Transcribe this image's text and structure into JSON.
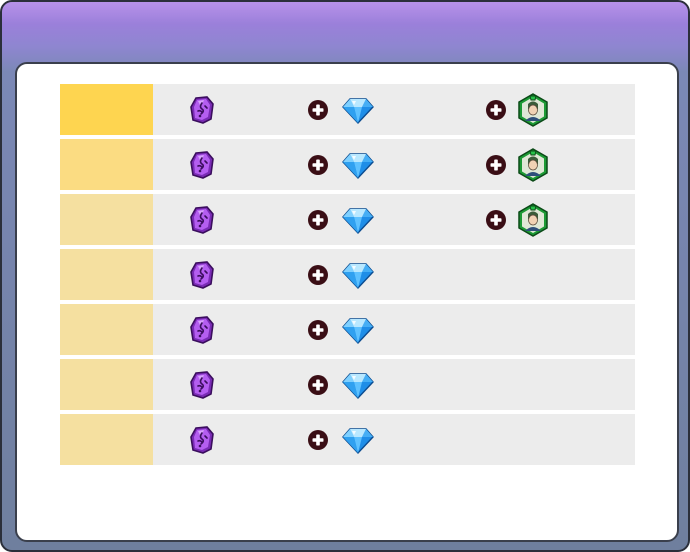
{
  "window": {
    "title": "",
    "colors": {
      "header_top": "#a77ae4",
      "header_bottom": "#6f7f9e",
      "row_bg": "#ececec"
    }
  },
  "reward_table": {
    "rows": [
      {
        "rank_label": "",
        "rank_color": "#fed550",
        "rewards": [
          "soul-stone-icon",
          "diamond-icon",
          "hero-card-icon"
        ]
      },
      {
        "rank_label": "",
        "rank_color": "#fbdc82",
        "rewards": [
          "soul-stone-icon",
          "diamond-icon",
          "hero-card-icon"
        ]
      },
      {
        "rank_label": "",
        "rank_color": "#f5e0a0",
        "rewards": [
          "soul-stone-icon",
          "diamond-icon",
          "hero-card-icon"
        ]
      },
      {
        "rank_label": "",
        "rank_color": "#f5e0a0",
        "rewards": [
          "soul-stone-icon",
          "diamond-icon"
        ]
      },
      {
        "rank_label": "",
        "rank_color": "#f5e0a0",
        "rewards": [
          "soul-stone-icon",
          "diamond-icon"
        ]
      },
      {
        "rank_label": "",
        "rank_color": "#f5e0a0",
        "rewards": [
          "soul-stone-icon",
          "diamond-icon"
        ]
      },
      {
        "rank_label": "",
        "rank_color": "#f5e0a0",
        "rewards": [
          "soul-stone-icon",
          "diamond-icon"
        ]
      }
    ]
  }
}
